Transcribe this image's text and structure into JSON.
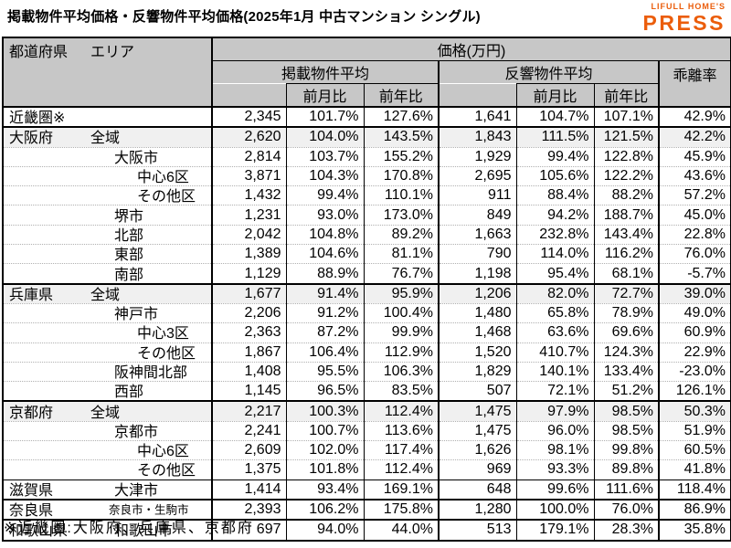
{
  "page": {
    "title": "掲載物件平均価格・反響物件平均価格(2025年1月 中古マンション シングル)",
    "footnote": "※近畿圏:大阪府、兵庫県、京都府"
  },
  "logo": {
    "top": "LIFULL HOME'S",
    "main": "PRESS"
  },
  "colors": {
    "accent_orange": "#eb5d0b",
    "header_bg": "#c7c7c7",
    "highlight_row_bg": "#f0f0f0",
    "border": "#000000"
  },
  "table": {
    "corner": {
      "col1": "都道府県",
      "col2": "エリア"
    },
    "price_header": "価格(万円)",
    "group_listed": "掲載物件平均",
    "group_inquiry": "反響物件平均",
    "group_divergence": "乖離率",
    "sub_mom": "前月比",
    "sub_yoy": "前年比",
    "rows": [
      {
        "pref": "近畿圏※",
        "area": "",
        "indent": 0,
        "sep": "none",
        "highlight": false,
        "small": false,
        "values": [
          "2,345",
          "101.7%",
          "127.6%",
          "1,641",
          "104.7%",
          "107.1%",
          "42.9%"
        ]
      },
      {
        "pref": "大阪府",
        "area": "全域",
        "indent": 1,
        "sep": "thick",
        "highlight": true,
        "small": false,
        "values": [
          "2,620",
          "104.0%",
          "143.5%",
          "1,843",
          "111.5%",
          "121.5%",
          "42.2%"
        ]
      },
      {
        "pref": "",
        "area": "大阪市",
        "indent": 2,
        "sep": "dotted",
        "highlight": false,
        "small": false,
        "values": [
          "2,814",
          "103.7%",
          "155.2%",
          "1,929",
          "99.4%",
          "122.8%",
          "45.9%"
        ]
      },
      {
        "pref": "",
        "area": "中心6区",
        "indent": 3,
        "sep": "dotted",
        "highlight": false,
        "small": false,
        "values": [
          "3,871",
          "104.3%",
          "170.8%",
          "2,695",
          "105.6%",
          "122.2%",
          "43.6%"
        ]
      },
      {
        "pref": "",
        "area": "その他区",
        "indent": 3,
        "sep": "dotted",
        "highlight": false,
        "small": false,
        "values": [
          "1,432",
          "99.4%",
          "110.1%",
          "911",
          "88.4%",
          "88.2%",
          "57.2%"
        ]
      },
      {
        "pref": "",
        "area": "堺市",
        "indent": 2,
        "sep": "dotted",
        "highlight": false,
        "small": false,
        "values": [
          "1,231",
          "93.0%",
          "173.0%",
          "849",
          "94.2%",
          "188.7%",
          "45.0%"
        ]
      },
      {
        "pref": "",
        "area": "北部",
        "indent": 2,
        "sep": "dotted",
        "highlight": false,
        "small": false,
        "values": [
          "2,042",
          "104.8%",
          "89.2%",
          "1,663",
          "232.8%",
          "143.4%",
          "22.8%"
        ]
      },
      {
        "pref": "",
        "area": "東部",
        "indent": 2,
        "sep": "dotted",
        "highlight": false,
        "small": false,
        "values": [
          "1,389",
          "104.6%",
          "81.1%",
          "790",
          "114.0%",
          "116.2%",
          "76.0%"
        ]
      },
      {
        "pref": "",
        "area": "南部",
        "indent": 2,
        "sep": "dotted",
        "highlight": false,
        "small": false,
        "values": [
          "1,129",
          "88.9%",
          "76.7%",
          "1,198",
          "95.4%",
          "68.1%",
          "-5.7%"
        ]
      },
      {
        "pref": "兵庫県",
        "area": "全域",
        "indent": 1,
        "sep": "thick",
        "highlight": true,
        "small": false,
        "values": [
          "1,677",
          "91.4%",
          "95.9%",
          "1,206",
          "82.0%",
          "72.7%",
          "39.0%"
        ]
      },
      {
        "pref": "",
        "area": "神戸市",
        "indent": 2,
        "sep": "dotted",
        "highlight": false,
        "small": false,
        "values": [
          "2,206",
          "91.2%",
          "100.4%",
          "1,480",
          "65.8%",
          "78.9%",
          "49.0%"
        ]
      },
      {
        "pref": "",
        "area": "中心3区",
        "indent": 3,
        "sep": "dotted",
        "highlight": false,
        "small": false,
        "values": [
          "2,363",
          "87.2%",
          "99.9%",
          "1,468",
          "63.6%",
          "69.6%",
          "60.9%"
        ]
      },
      {
        "pref": "",
        "area": "その他区",
        "indent": 3,
        "sep": "dotted",
        "highlight": false,
        "small": false,
        "values": [
          "1,867",
          "106.4%",
          "112.9%",
          "1,520",
          "410.7%",
          "124.3%",
          "22.9%"
        ]
      },
      {
        "pref": "",
        "area": "阪神間北部",
        "indent": 2,
        "sep": "dotted",
        "highlight": false,
        "small": false,
        "values": [
          "1,408",
          "95.5%",
          "106.3%",
          "1,829",
          "140.1%",
          "133.4%",
          "-23.0%"
        ]
      },
      {
        "pref": "",
        "area": "西部",
        "indent": 2,
        "sep": "dotted",
        "highlight": false,
        "small": false,
        "values": [
          "1,145",
          "96.5%",
          "83.5%",
          "507",
          "72.1%",
          "51.2%",
          "126.1%"
        ]
      },
      {
        "pref": "京都府",
        "area": "全域",
        "indent": 1,
        "sep": "thick",
        "highlight": true,
        "small": false,
        "values": [
          "2,217",
          "100.3%",
          "112.4%",
          "1,475",
          "97.9%",
          "98.5%",
          "50.3%"
        ]
      },
      {
        "pref": "",
        "area": "京都市",
        "indent": 2,
        "sep": "dotted",
        "highlight": false,
        "small": false,
        "values": [
          "2,241",
          "100.7%",
          "113.6%",
          "1,475",
          "96.0%",
          "98.5%",
          "51.9%"
        ]
      },
      {
        "pref": "",
        "area": "中心6区",
        "indent": 3,
        "sep": "dotted",
        "highlight": false,
        "small": false,
        "values": [
          "2,609",
          "102.0%",
          "117.4%",
          "1,626",
          "98.1%",
          "99.8%",
          "60.5%"
        ]
      },
      {
        "pref": "",
        "area": "その他区",
        "indent": 3,
        "sep": "dotted",
        "highlight": false,
        "small": false,
        "values": [
          "1,375",
          "101.8%",
          "112.4%",
          "969",
          "93.3%",
          "89.8%",
          "41.8%"
        ]
      },
      {
        "pref": "滋賀県",
        "area": "大津市",
        "indent": 2,
        "sep": "thin",
        "highlight": false,
        "small": false,
        "values": [
          "1,414",
          "93.4%",
          "169.1%",
          "648",
          "99.6%",
          "111.6%",
          "118.4%"
        ]
      },
      {
        "pref": "奈良県",
        "area": "奈良市・生駒市",
        "indent": 2,
        "sep": "thick",
        "highlight": false,
        "small": true,
        "values": [
          "2,393",
          "106.2%",
          "175.8%",
          "1,280",
          "100.0%",
          "76.0%",
          "86.9%"
        ]
      },
      {
        "pref": "和歌山県",
        "area": "和歌山市",
        "indent": 2,
        "sep": "thick",
        "highlight": false,
        "small": false,
        "values": [
          "697",
          "94.0%",
          "44.0%",
          "513",
          "179.1%",
          "28.3%",
          "35.8%"
        ]
      }
    ]
  }
}
